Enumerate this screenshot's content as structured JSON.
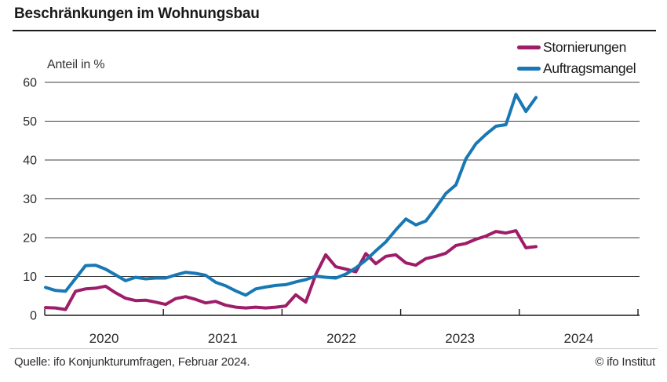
{
  "title": "Beschränkungen im Wohnungsbau",
  "legend": {
    "items": [
      {
        "label": "Stornierungen",
        "color": "#9e1d68"
      },
      {
        "label": "Auftragsmangel",
        "color": "#1878b4"
      }
    ]
  },
  "chart_data": {
    "type": "line",
    "title": "Beschränkungen im Wohnungsbau",
    "ylabel": "Anteil in %",
    "unit_label": "Anteil in %",
    "ylim": [
      0,
      60
    ],
    "y_ticks": [
      0,
      10,
      20,
      30,
      40,
      50,
      60
    ],
    "grid": "horizontal",
    "legend_position": "top-right",
    "x_year_labels": [
      "2020",
      "2021",
      "2022",
      "2023",
      "2024"
    ],
    "x_months": [
      "2020-01",
      "2020-02",
      "2020-03",
      "2020-04",
      "2020-05",
      "2020-06",
      "2020-07",
      "2020-08",
      "2020-09",
      "2020-10",
      "2020-11",
      "2020-12",
      "2021-01",
      "2021-02",
      "2021-03",
      "2021-04",
      "2021-05",
      "2021-06",
      "2021-07",
      "2021-08",
      "2021-09",
      "2021-10",
      "2021-11",
      "2021-12",
      "2022-01",
      "2022-02",
      "2022-03",
      "2022-04",
      "2022-05",
      "2022-06",
      "2022-07",
      "2022-08",
      "2022-09",
      "2022-10",
      "2022-11",
      "2022-12",
      "2023-01",
      "2023-02",
      "2023-03",
      "2023-04",
      "2023-05",
      "2023-06",
      "2023-07",
      "2023-08",
      "2023-09",
      "2023-10",
      "2023-11",
      "2023-12",
      "2024-01",
      "2024-02"
    ],
    "series": [
      {
        "name": "Stornierungen",
        "color": "#9e1d68",
        "values": [
          2.0,
          1.9,
          1.5,
          6.2,
          6.8,
          7.0,
          7.5,
          5.8,
          4.4,
          3.8,
          3.9,
          3.4,
          2.8,
          4.3,
          4.8,
          4.1,
          3.2,
          3.6,
          2.6,
          2.1,
          1.9,
          2.1,
          1.9,
          2.1,
          2.4,
          5.3,
          3.4,
          10.5,
          15.6,
          12.5,
          11.9,
          11.2,
          15.9,
          13.3,
          15.2,
          15.6,
          13.5,
          12.9,
          14.6,
          15.2,
          16.0,
          18.0,
          18.5,
          19.6,
          20.4,
          21.6,
          21.2,
          21.8,
          17.4,
          17.7
        ]
      },
      {
        "name": "Auftragsmangel",
        "color": "#1878b4",
        "values": [
          7.2,
          6.4,
          6.2,
          9.5,
          12.8,
          12.9,
          11.9,
          10.4,
          8.9,
          9.8,
          9.4,
          9.6,
          9.6,
          10.4,
          11.1,
          10.8,
          10.3,
          8.5,
          7.6,
          6.3,
          5.2,
          6.8,
          7.3,
          7.7,
          7.9,
          8.6,
          9.2,
          10.1,
          9.8,
          9.6,
          10.6,
          12.2,
          14.2,
          16.6,
          18.9,
          22.0,
          24.8,
          23.3,
          24.3,
          27.7,
          31.4,
          33.6,
          40.3,
          44.2,
          46.6,
          48.7,
          49.1,
          56.9,
          52.5,
          56.1
        ]
      }
    ]
  },
  "footer": {
    "source": "Quelle: ifo Konjunkturumfragen, Februar 2024.",
    "copyright": "© ifo Institut"
  }
}
